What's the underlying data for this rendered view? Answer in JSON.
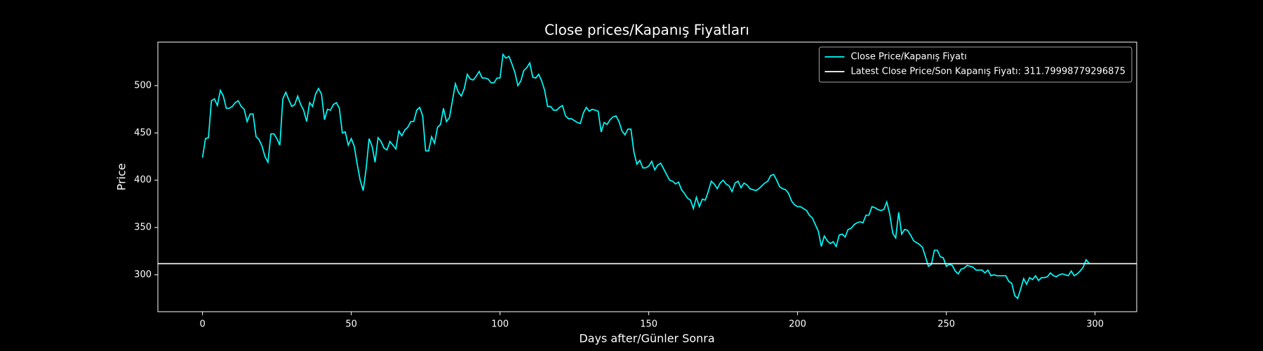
{
  "chart_data": {
    "type": "line",
    "title": "Close prices/Kapanış Fiyatları",
    "x_label": "Days after/Günler Sonra",
    "y_label": "Price",
    "xlim": [
      -15,
      314
    ],
    "ylim": [
      261,
      546
    ],
    "xticks": [
      0,
      50,
      100,
      150,
      200,
      250,
      300
    ],
    "yticks": [
      300,
      350,
      400,
      450,
      500
    ],
    "legend": "upper right",
    "x": [
      0,
      1,
      2,
      3,
      4,
      5,
      6,
      7,
      8,
      9,
      10,
      11,
      12,
      13,
      14,
      15,
      16,
      17,
      18,
      19,
      20,
      21,
      22,
      23,
      24,
      25,
      26,
      27,
      28,
      29,
      30,
      31,
      32,
      33,
      34,
      35,
      36,
      37,
      38,
      39,
      40,
      41,
      42,
      43,
      44,
      45,
      46,
      47,
      48,
      49,
      50,
      51,
      52,
      53,
      54,
      55,
      56,
      57,
      58,
      59,
      60,
      61,
      62,
      63,
      64,
      65,
      66,
      67,
      68,
      69,
      70,
      71,
      72,
      73,
      74,
      75,
      76,
      77,
      78,
      79,
      80,
      81,
      82,
      83,
      84,
      85,
      86,
      87,
      88,
      89,
      90,
      91,
      92,
      93,
      94,
      95,
      96,
      97,
      98,
      99,
      100,
      101,
      102,
      103,
      104,
      105,
      106,
      107,
      108,
      109,
      110,
      111,
      112,
      113,
      114,
      115,
      116,
      117,
      118,
      119,
      120,
      121,
      122,
      123,
      124,
      125,
      126,
      127,
      128,
      129,
      130,
      131,
      132,
      133,
      134,
      135,
      136,
      137,
      138,
      139,
      140,
      141,
      142,
      143,
      144,
      145,
      146,
      147,
      148,
      149,
      150,
      151,
      152,
      153,
      154,
      155,
      156,
      157,
      158,
      159,
      160,
      161,
      162,
      163,
      164,
      165,
      166,
      167,
      168,
      169,
      170,
      171,
      172,
      173,
      174,
      175,
      176,
      177,
      178,
      179,
      180,
      181,
      182,
      183,
      184,
      185,
      186,
      187,
      188,
      189,
      190,
      191,
      192,
      193,
      194,
      195,
      196,
      197,
      198,
      199,
      200,
      201,
      202,
      203,
      204,
      205,
      206,
      207,
      208,
      209,
      210,
      211,
      212,
      213,
      214,
      215,
      216,
      217,
      218,
      219,
      220,
      221,
      222,
      223,
      224,
      225,
      226,
      227,
      228,
      229,
      230,
      231,
      232,
      233,
      234,
      235,
      236,
      237,
      238,
      239,
      240,
      241,
      242,
      243,
      244,
      245,
      246,
      247,
      248,
      249,
      250,
      251,
      252,
      253,
      254,
      255,
      256,
      257,
      258,
      259,
      260,
      261,
      262,
      263,
      264,
      265,
      266,
      267,
      268,
      269,
      270,
      271,
      272,
      273,
      274,
      275,
      276,
      277,
      278,
      279,
      280,
      281,
      282,
      283,
      284,
      285,
      286,
      287,
      288,
      289,
      290,
      291,
      292,
      293,
      294,
      295,
      296,
      297,
      298
    ],
    "series": [
      {
        "name": "Close Price/Kapanış Fiyatı",
        "color": "#00ffff",
        "values": [
          424,
          444,
          445,
          484,
          486,
          479,
          495,
          489,
          476,
          476,
          478,
          482,
          484,
          478,
          475,
          462,
          470,
          470,
          446,
          443,
          436,
          425,
          419,
          449,
          449,
          444,
          437,
          486,
          493,
          485,
          478,
          480,
          489,
          480,
          474,
          462,
          482,
          478,
          491,
          497,
          491,
          464,
          475,
          474,
          480,
          482,
          476,
          450,
          451,
          437,
          444,
          436,
          417,
          400,
          389,
          412,
          444,
          436,
          419,
          445,
          441,
          434,
          432,
          441,
          437,
          433,
          452,
          447,
          453,
          456,
          462,
          462,
          474,
          477,
          468,
          431,
          431,
          446,
          439,
          456,
          459,
          476,
          462,
          466,
          484,
          502,
          493,
          489,
          497,
          512,
          507,
          506,
          510,
          515,
          508,
          508,
          507,
          503,
          503,
          508,
          508,
          533,
          529,
          531,
          523,
          514,
          500,
          505,
          516,
          519,
          524,
          509,
          508,
          512,
          505,
          495,
          478,
          478,
          474,
          474,
          477,
          479,
          468,
          465,
          465,
          463,
          461,
          460,
          471,
          477,
          473,
          475,
          474,
          473,
          451,
          461,
          459,
          464,
          467,
          468,
          462,
          452,
          448,
          454,
          454,
          430,
          417,
          421,
          413,
          413,
          415,
          420,
          411,
          416,
          418,
          412,
          406,
          400,
          399,
          396,
          398,
          390,
          386,
          381,
          379,
          370,
          382,
          372,
          380,
          379,
          388,
          399,
          396,
          391,
          397,
          400,
          396,
          394,
          388,
          397,
          399,
          392,
          397,
          395,
          391,
          390,
          389,
          391,
          394,
          397,
          399,
          405,
          406,
          400,
          393,
          391,
          390,
          386,
          378,
          374,
          372,
          372,
          370,
          368,
          363,
          360,
          353,
          346,
          330,
          341,
          336,
          333,
          335,
          330,
          342,
          343,
          340,
          348,
          349,
          353,
          355,
          356,
          355,
          363,
          363,
          372,
          371,
          369,
          368,
          369,
          377,
          364,
          344,
          339,
          366,
          343,
          348,
          347,
          342,
          336,
          334,
          332,
          329,
          319,
          309,
          311,
          326,
          326,
          319,
          318,
          309,
          311,
          310,
          304,
          301,
          306,
          307,
          310,
          309,
          308,
          305,
          305,
          305,
          302,
          305,
          299,
          300,
          299,
          299,
          299,
          299,
          293,
          291,
          278,
          275,
          285,
          296,
          290,
          297,
          295,
          299,
          294,
          297,
          297,
          298,
          302,
          299,
          298,
          300,
          301,
          300,
          299,
          304,
          299,
          301,
          304,
          308,
          316,
          312
        ]
      }
    ],
    "hline": {
      "name": "Latest Close Price/Son Kapanış Fiyatı: 311.79998779296875",
      "value": 311.79998779296875,
      "color": "#ffffff"
    }
  }
}
